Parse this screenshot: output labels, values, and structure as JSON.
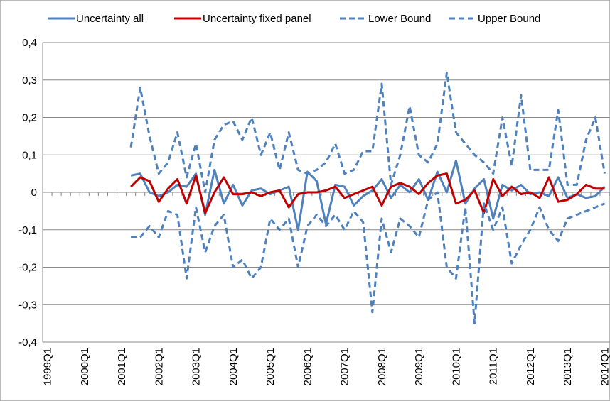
{
  "chart_data": {
    "type": "line",
    "categories": [
      "1999Q1",
      null,
      null,
      null,
      "2000Q1",
      null,
      null,
      null,
      "2001Q1",
      null,
      null,
      null,
      "2002Q1",
      null,
      null,
      null,
      "2003Q1",
      null,
      null,
      null,
      "2004Q1",
      null,
      null,
      null,
      "2005Q1",
      null,
      null,
      null,
      "2006Q1",
      null,
      null,
      null,
      "2007Q1",
      null,
      null,
      null,
      "2008Q1",
      null,
      null,
      null,
      "2009Q1",
      null,
      null,
      null,
      "2010Q1",
      null,
      null,
      null,
      "2011Q1",
      null,
      null,
      null,
      "2012Q1",
      null,
      null,
      null,
      "2013Q1",
      null,
      null,
      null,
      "2014Q1"
    ],
    "series": [
      {
        "name": "Uncertainty all",
        "color": "#4f81bd",
        "dash": false,
        "values": [
          null,
          null,
          null,
          null,
          null,
          null,
          null,
          null,
          null,
          0.045,
          0.05,
          0.0,
          -0.01,
          0.0,
          0.02,
          0.015,
          0.05,
          -0.06,
          0.06,
          -0.03,
          0.02,
          -0.035,
          0.005,
          0.01,
          -0.005,
          0.005,
          0.015,
          -0.1,
          0.055,
          0.03,
          -0.085,
          0.02,
          0.015,
          -0.035,
          -0.01,
          0.005,
          0.035,
          -0.015,
          0.02,
          0.0,
          0.035,
          -0.02,
          0.055,
          0.0,
          0.085,
          -0.03,
          0.01,
          0.035,
          -0.07,
          0.02,
          0.005,
          0.02,
          -0.005,
          0.0,
          -0.01,
          0.04,
          -0.015,
          -0.005,
          -0.015,
          -0.01,
          0.015
        ]
      },
      {
        "name": "Uncertainty fixed panel",
        "color": "#c00000",
        "dash": false,
        "values": [
          null,
          null,
          null,
          null,
          null,
          null,
          null,
          null,
          null,
          0.015,
          0.04,
          0.03,
          -0.025,
          0.01,
          0.035,
          -0.03,
          0.045,
          -0.055,
          0.0,
          0.04,
          -0.005,
          -0.005,
          0.0,
          -0.01,
          0.0,
          0.005,
          -0.04,
          -0.005,
          0.0,
          0.0,
          0.005,
          0.015,
          -0.015,
          -0.005,
          0.005,
          0.015,
          -0.035,
          0.015,
          0.025,
          0.015,
          -0.005,
          0.025,
          0.045,
          0.05,
          -0.03,
          -0.02,
          0.005,
          -0.055,
          0.035,
          -0.01,
          0.015,
          -0.005,
          0.0,
          -0.015,
          0.04,
          -0.025,
          -0.02,
          -0.005,
          0.02,
          0.01,
          0.01
        ]
      },
      {
        "name": "Lower Bound",
        "color": "#4f81bd",
        "dash": true,
        "values": [
          null,
          null,
          null,
          null,
          null,
          null,
          null,
          null,
          null,
          -0.12,
          -0.12,
          -0.09,
          -0.12,
          -0.05,
          -0.06,
          -0.23,
          -0.04,
          -0.16,
          -0.09,
          -0.06,
          -0.2,
          -0.18,
          -0.23,
          -0.2,
          -0.07,
          -0.1,
          -0.07,
          -0.2,
          -0.09,
          -0.06,
          -0.09,
          -0.06,
          -0.1,
          -0.05,
          -0.08,
          -0.32,
          -0.07,
          -0.16,
          -0.07,
          -0.09,
          -0.12,
          -0.02,
          0.0,
          -0.2,
          -0.23,
          -0.04,
          -0.35,
          -0.03,
          -0.1,
          -0.04,
          -0.19,
          -0.14,
          -0.1,
          -0.04,
          -0.1,
          -0.13,
          -0.07,
          -0.06,
          -0.05,
          -0.04,
          -0.03
        ]
      },
      {
        "name": "Upper Bound",
        "color": "#4f81bd",
        "dash": true,
        "values": [
          null,
          null,
          null,
          null,
          null,
          null,
          null,
          null,
          null,
          0.12,
          0.28,
          0.15,
          0.05,
          0.08,
          0.16,
          0.04,
          0.13,
          0.0,
          0.14,
          0.18,
          0.19,
          0.14,
          0.2,
          0.1,
          0.16,
          0.06,
          0.16,
          0.06,
          0.05,
          0.06,
          0.08,
          0.13,
          0.05,
          0.06,
          0.11,
          0.11,
          0.29,
          0.02,
          0.1,
          0.23,
          0.1,
          0.08,
          0.13,
          0.32,
          0.16,
          0.13,
          0.1,
          0.08,
          0.05,
          0.2,
          0.07,
          0.26,
          0.06,
          0.06,
          0.06,
          0.22,
          0.02,
          0.02,
          0.14,
          0.2,
          0.05
        ]
      }
    ],
    "ylim": [
      -0.4,
      0.4
    ],
    "yticks": [
      {
        "value": -0.4,
        "label": "-0,4"
      },
      {
        "value": -0.3,
        "label": "-0,3"
      },
      {
        "value": -0.2,
        "label": "-0,2"
      },
      {
        "value": -0.1,
        "label": "-0,1"
      },
      0,
      {
        "value": 0.1,
        "label": "0,1"
      },
      {
        "value": 0.2,
        "label": "0,2"
      },
      {
        "value": 0.3,
        "label": "0,3"
      },
      {
        "value": 0.4,
        "label": "0,4"
      }
    ],
    "grid": true,
    "legend": "top"
  }
}
